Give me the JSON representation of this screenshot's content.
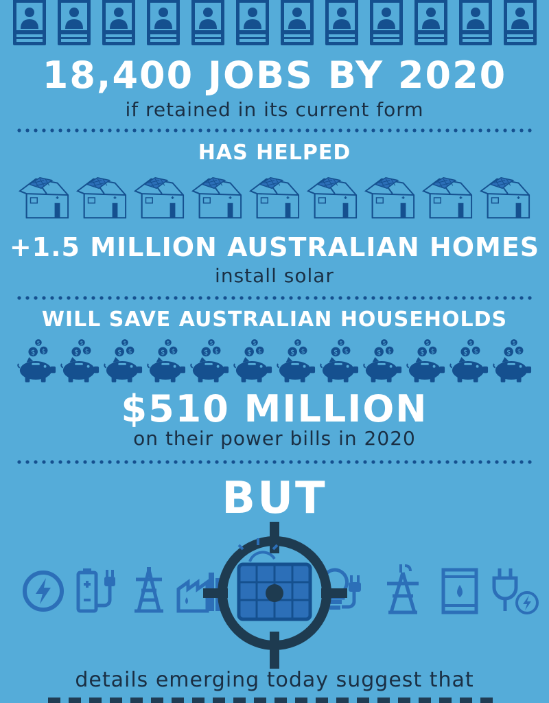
{
  "colors": {
    "background": "#55acd9",
    "icon_dark": "#15508f",
    "icon_blue": "#2c6fb8",
    "target": "#1e3b50",
    "headline": "#ffffff",
    "body_text": "#1a2f44"
  },
  "jobs": {
    "headline": "18,400 JOBS BY 2020",
    "caption": "if retained in its current form",
    "icon_count": 12,
    "icon": "id-badge-icon"
  },
  "homes": {
    "kicker": "HAS HELPED",
    "headline": "+1.5 MILLION AUSTRALIAN HOMES",
    "caption": "install solar",
    "icon_count": 9,
    "icon": "solar-house-icon"
  },
  "savings": {
    "kicker": "WILL SAVE AUSTRALIAN HOUSEHOLDS",
    "headline": "$510 MILLION",
    "caption": "on their power bills in 2020",
    "icon_count": 12,
    "icon": "piggy-bank-icon"
  },
  "but": {
    "headline": "BUT",
    "icons": [
      "lightning-icon",
      "battery-plug-icon",
      "power-pylon-icon",
      "factory-icon",
      "target-solar-panel-icon",
      "lightbulb-plug-icon",
      "oil-rig-icon",
      "oil-barrel-icon",
      "plug-lightning-icon"
    ],
    "caption": "details emerging today suggest that"
  }
}
